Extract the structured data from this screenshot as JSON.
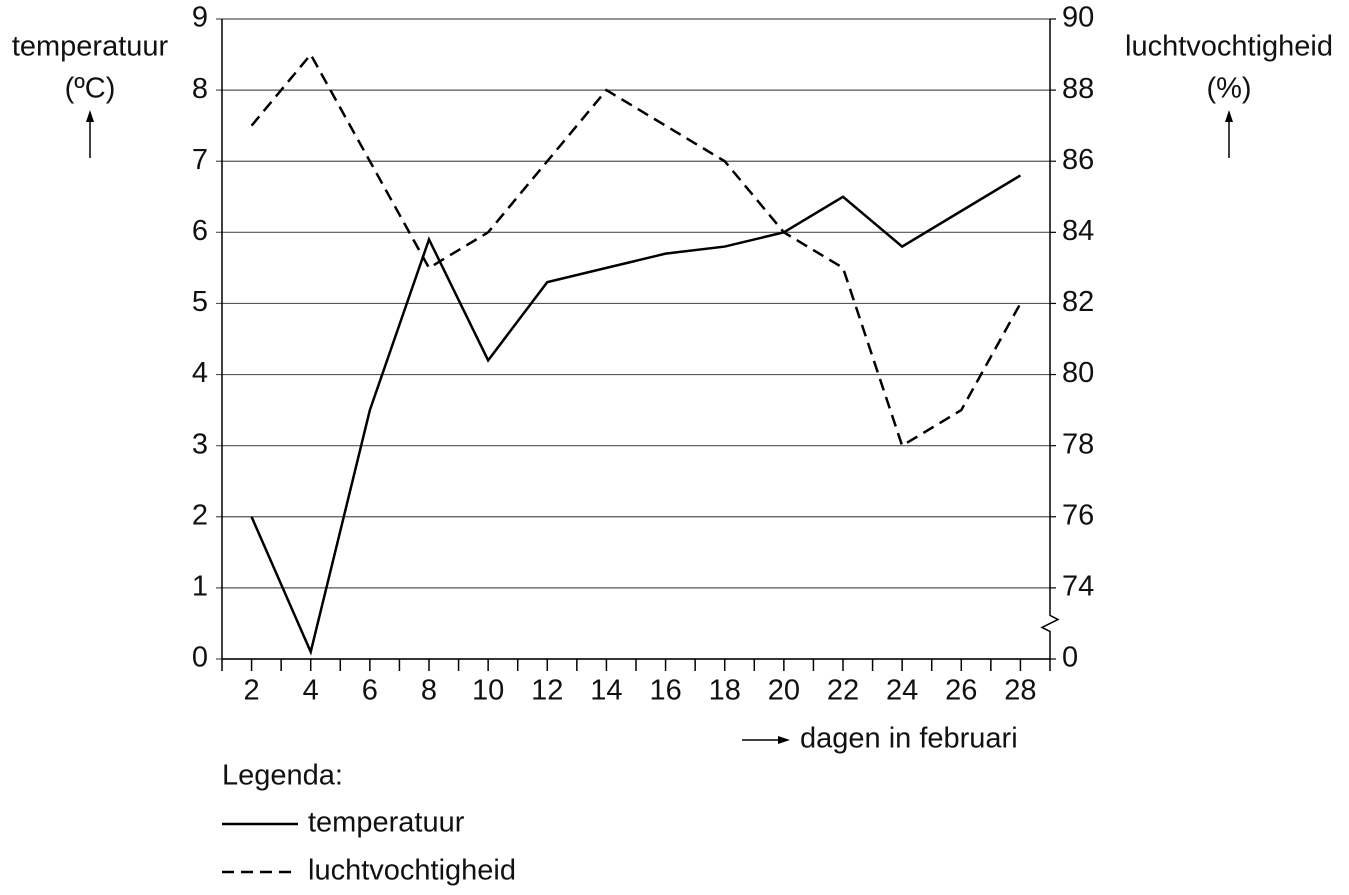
{
  "chart_data": {
    "type": "line",
    "ylabel": [
      "temperatuur",
      "(ºC)"
    ],
    "y2label": [
      "luchtvochtigheid",
      "(%)"
    ],
    "xlabel": "dagen in februari",
    "legend_title": "Legenda:",
    "legend": "bottom-left",
    "grid": true,
    "y2_break": true,
    "x": [
      2,
      4,
      6,
      8,
      10,
      12,
      14,
      16,
      18,
      20,
      22,
      24,
      26,
      28
    ],
    "xlim": [
      1,
      29
    ],
    "xticks": [
      2,
      4,
      6,
      8,
      10,
      12,
      14,
      16,
      18,
      20,
      22,
      24,
      26,
      28
    ],
    "xminorticks": [
      1,
      3,
      5,
      7,
      9,
      11,
      13,
      15,
      17,
      19,
      21,
      23,
      25,
      27,
      29
    ],
    "ylim": [
      0,
      9
    ],
    "yticks": [
      0,
      1,
      2,
      3,
      4,
      5,
      6,
      7,
      8,
      9
    ],
    "y2lim": [
      72,
      90
    ],
    "y2ticks": [
      {
        "value": 72,
        "label": "0"
      },
      74,
      76,
      78,
      80,
      82,
      84,
      86,
      88,
      90
    ],
    "series": [
      {
        "name": "temperatuur",
        "color": "#000000",
        "dash": "solid",
        "values": [
          2,
          0.1,
          3.5,
          5.9,
          4.2,
          5.3,
          5.5,
          5.7,
          5.8,
          6.0,
          6.5,
          5.8,
          6.3,
          6.8
        ]
      },
      {
        "name": "luchtvochtigheid",
        "color": "#000000",
        "dash": "dashed",
        "axis": "y2",
        "values": [
          87,
          89,
          86,
          83,
          84,
          86,
          88,
          87,
          86,
          84,
          83,
          78,
          79,
          82
        ]
      }
    ]
  }
}
